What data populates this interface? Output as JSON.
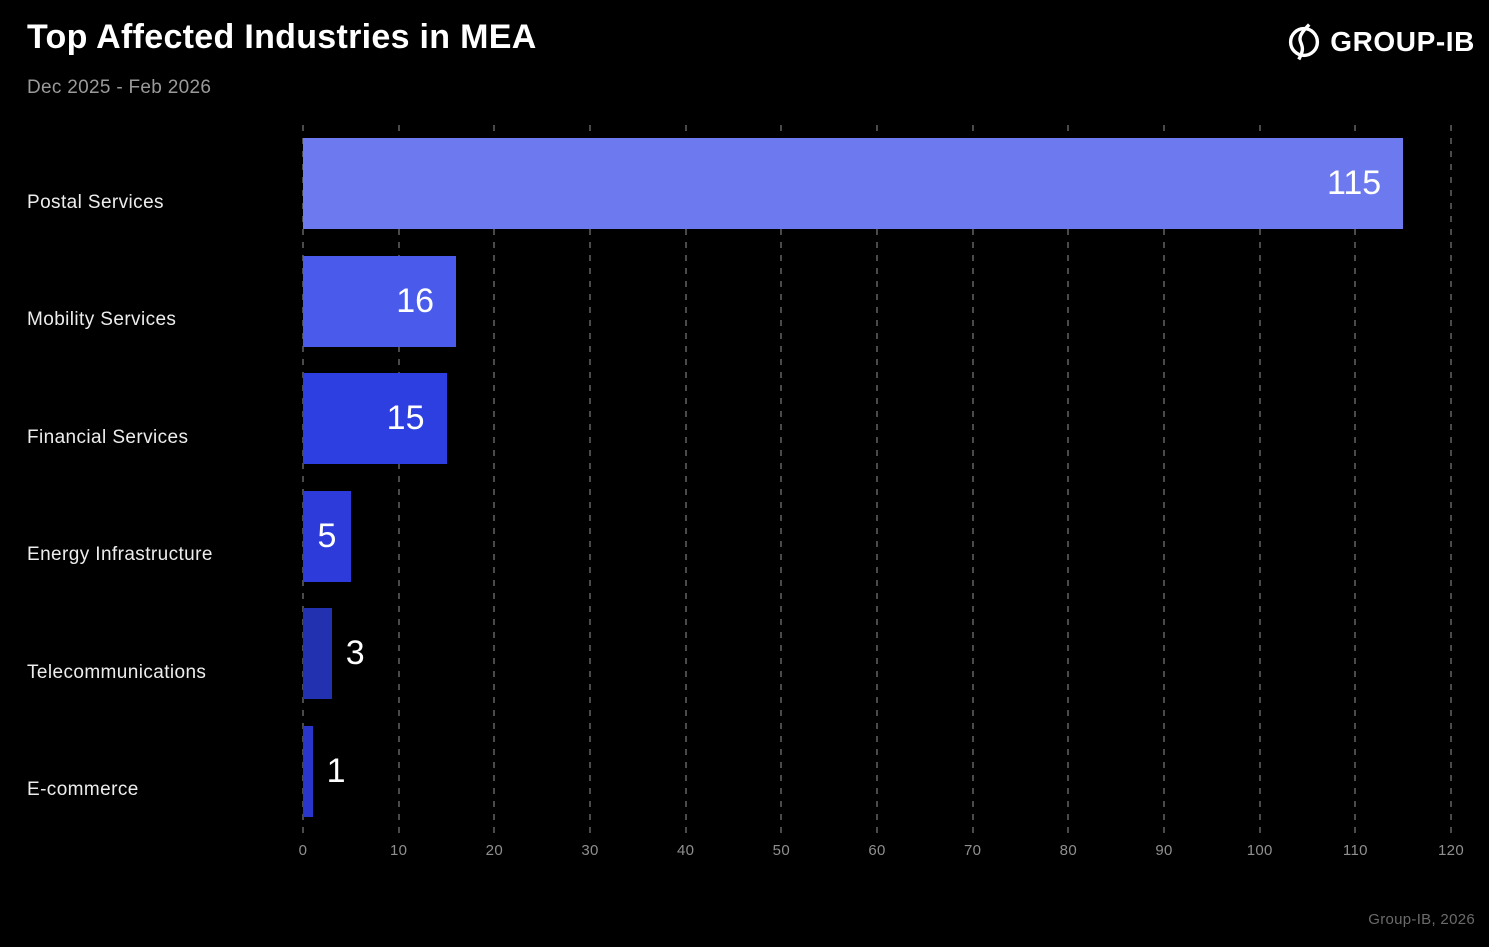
{
  "header": {
    "title": "Top Affected Industries in MEA",
    "subtitle": "Dec 2025 - Feb 2026",
    "brand": "GROUP-IB"
  },
  "footer": {
    "credit": "Group-IB, 2026"
  },
  "colors": {
    "background": "#000000",
    "title_text": "#ffffff",
    "subtitle_text": "#9a9a9a",
    "category_text": "#ededed",
    "gridline": "#4a4a4a",
    "tick_text": "#8f8f8f",
    "footer_text": "#6b6b6b"
  },
  "chart_data": {
    "type": "bar",
    "orientation": "horizontal",
    "title": "Top Affected Industries in MEA",
    "subtitle": "Dec 2025 - Feb 2026",
    "categories": [
      "Postal Services",
      "Mobility Services",
      "Financial Services",
      "Energy Infrastructure",
      "Telecommunications",
      "E-commerce"
    ],
    "values": [
      115,
      16,
      15,
      5,
      3,
      1
    ],
    "bar_colors": [
      "#6C79EF",
      "#4A5BEB",
      "#2E3FE2",
      "#2C3BD9",
      "#2231AF",
      "#2A36C9"
    ],
    "value_label_color": "#ffffff",
    "xlim": [
      0,
      120
    ],
    "xticks": [
      0,
      10,
      20,
      30,
      40,
      50,
      60,
      70,
      80,
      90,
      100,
      110,
      120
    ],
    "grid": "dashed-vertical",
    "legend": false
  }
}
